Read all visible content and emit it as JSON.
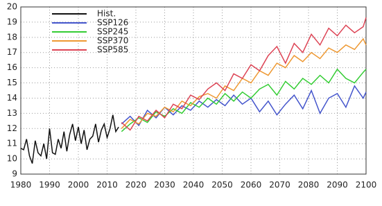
{
  "chart_data": {
    "type": "line",
    "xlim": [
      1980,
      2100
    ],
    "xticks": [
      1980,
      1990,
      2000,
      2010,
      2020,
      2030,
      2040,
      2050,
      2060,
      2070,
      2080,
      2090,
      2100
    ],
    "ylim": [
      9,
      20
    ],
    "yticks": [
      9,
      10,
      11,
      12,
      13,
      14,
      15,
      16,
      17,
      18,
      19,
      20
    ],
    "grid": true,
    "legend": "upper left",
    "series": [
      {
        "name": "Hist.",
        "color": "#111111",
        "x": [
          1980,
          1981,
          1982,
          1983,
          1984,
          1985,
          1986,
          1987,
          1988,
          1989,
          1990,
          1991,
          1992,
          1993,
          1994,
          1995,
          1996,
          1997,
          1998,
          1999,
          2000,
          2001,
          2002,
          2003,
          2004,
          2005,
          2006,
          2007,
          2008,
          2009,
          2010,
          2011,
          2012,
          2013,
          2014
        ],
        "values": [
          10.7,
          10.6,
          11.3,
          10.2,
          9.7,
          11.2,
          10.4,
          10.2,
          11.0,
          10.0,
          12.0,
          10.4,
          10.3,
          11.3,
          10.7,
          11.8,
          10.5,
          11.6,
          12.3,
          11.2,
          12.1,
          11.0,
          11.9,
          10.6,
          11.3,
          11.5,
          12.3,
          11.1,
          11.9,
          12.3,
          11.4,
          12.0,
          12.9,
          11.8,
          12.1
        ]
      },
      {
        "name": "SSP126",
        "color": "#4455cc",
        "x": [
          2015,
          2018,
          2021,
          2024,
          2027,
          2030,
          2033,
          2036,
          2039,
          2042,
          2045,
          2048,
          2051,
          2054,
          2057,
          2060,
          2063,
          2066,
          2069,
          2072,
          2075,
          2078,
          2081,
          2084,
          2087,
          2090,
          2093,
          2096,
          2099,
          2100
        ],
        "values": [
          12.3,
          12.8,
          12.2,
          13.2,
          12.7,
          13.4,
          12.9,
          13.5,
          13.2,
          13.8,
          13.4,
          13.9,
          13.5,
          14.2,
          13.6,
          14.0,
          13.1,
          13.8,
          12.9,
          13.6,
          14.2,
          13.3,
          14.5,
          13.0,
          14.0,
          14.3,
          13.4,
          14.8,
          14.0,
          14.4
        ]
      },
      {
        "name": "SSP245",
        "color": "#33cc33",
        "x": [
          2015,
          2018,
          2021,
          2024,
          2027,
          2030,
          2033,
          2036,
          2039,
          2042,
          2045,
          2048,
          2051,
          2054,
          2057,
          2060,
          2063,
          2066,
          2069,
          2072,
          2075,
          2078,
          2081,
          2084,
          2087,
          2090,
          2093,
          2096,
          2099,
          2100
        ],
        "values": [
          11.8,
          12.3,
          12.7,
          12.4,
          13.1,
          12.8,
          13.3,
          13.0,
          13.7,
          13.4,
          14.0,
          13.6,
          14.3,
          13.8,
          14.4,
          14.0,
          14.6,
          14.9,
          14.2,
          15.1,
          14.6,
          15.3,
          14.9,
          15.5,
          15.0,
          15.9,
          15.3,
          15.0,
          15.7,
          15.9
        ]
      },
      {
        "name": "SSP370",
        "color": "#ee9933",
        "x": [
          2015,
          2018,
          2021,
          2024,
          2027,
          2030,
          2033,
          2036,
          2039,
          2042,
          2045,
          2048,
          2051,
          2054,
          2057,
          2060,
          2063,
          2066,
          2069,
          2072,
          2075,
          2078,
          2081,
          2084,
          2087,
          2090,
          2093,
          2096,
          2099,
          2100
        ],
        "values": [
          12.0,
          12.6,
          12.3,
          13.0,
          12.8,
          13.4,
          13.1,
          13.8,
          13.5,
          14.1,
          14.3,
          14.0,
          14.8,
          14.5,
          15.3,
          15.0,
          15.8,
          15.5,
          16.3,
          16.0,
          16.8,
          16.4,
          17.0,
          16.6,
          17.3,
          17.0,
          17.5,
          17.2,
          17.9,
          17.5
        ]
      },
      {
        "name": "SSP585",
        "color": "#dd4455",
        "x": [
          2015,
          2018,
          2021,
          2024,
          2027,
          2030,
          2033,
          2036,
          2039,
          2042,
          2045,
          2048,
          2051,
          2054,
          2057,
          2060,
          2063,
          2066,
          2069,
          2072,
          2075,
          2078,
          2081,
          2084,
          2087,
          2090,
          2093,
          2096,
          2099,
          2100
        ],
        "values": [
          12.4,
          11.9,
          12.8,
          12.5,
          13.2,
          12.7,
          13.6,
          13.3,
          14.2,
          13.9,
          14.6,
          15.0,
          14.5,
          15.6,
          15.3,
          16.2,
          15.8,
          16.8,
          17.4,
          16.3,
          17.6,
          17.0,
          18.2,
          17.5,
          18.6,
          18.1,
          18.8,
          18.3,
          18.7,
          19.3
        ]
      }
    ]
  }
}
